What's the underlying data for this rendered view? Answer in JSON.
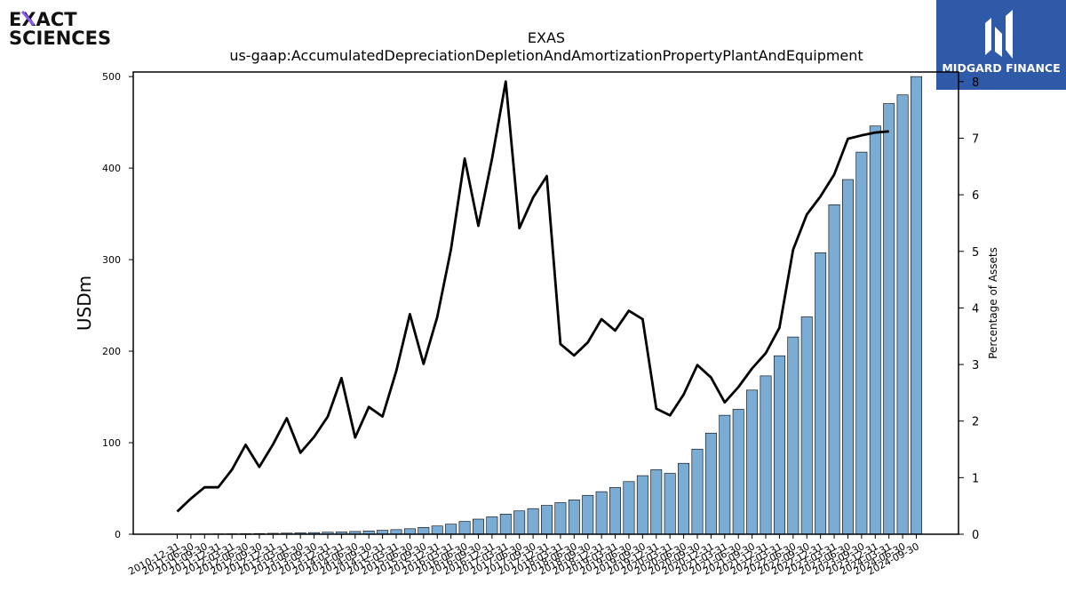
{
  "logos": {
    "left_line1": "EXACT",
    "left_line2": "SCIENCES",
    "right_text": "MIDGARD FINANCE"
  },
  "colors": {
    "bar_default": "#7bacd4",
    "bar_highlight": "#000000",
    "line": "#000000",
    "logo_right_bg": "#2f5aa8",
    "logo_accent": "#8a5cf5"
  },
  "chart_data": {
    "type": "bar",
    "title": "EXAS",
    "subtitle": "us-gaap:AccumulatedDepreciationDepletionAndAmortizationPropertyPlantAndEquipment",
    "ylabel": "USDm",
    "y2label": "Percentage of Assets",
    "ylim": [
      0,
      505
    ],
    "y2lim": [
      0,
      8.17
    ],
    "yticks": [
      0,
      100,
      200,
      300,
      400,
      500
    ],
    "y2ticks": [
      0,
      1,
      2,
      3,
      4,
      5,
      6,
      7,
      8
    ],
    "categories": [
      "2010-12-31",
      "2011-06-30",
      "2011-09-30",
      "2011-12-31",
      "2012-03-31",
      "2012-06-30",
      "2012-09-30",
      "2012-12-31",
      "2013-03-31",
      "2013-06-30",
      "2013-09-30",
      "2013-12-31",
      "2014-03-31",
      "2014-06-30",
      "2014-09-30",
      "2014-12-31",
      "2015-03-31",
      "2015-06-30",
      "2015-09-30",
      "2015-12-31",
      "2016-03-31",
      "2016-06-30",
      "2016-09-30",
      "2016-12-31",
      "2017-03-31",
      "2017-06-30",
      "2017-09-30",
      "2017-12-31",
      "2018-03-31",
      "2018-06-30",
      "2018-09-30",
      "2018-12-31",
      "2019-03-31",
      "2019-06-30",
      "2019-09-30",
      "2019-12-31",
      "2020-03-31",
      "2020-06-30",
      "2020-09-30",
      "2020-12-31",
      "2021-03-31",
      "2021-06-30",
      "2021-09-30",
      "2021-12-31",
      "2022-03-31",
      "2022-06-30",
      "2022-09-30",
      "2022-12-31",
      "2023-03-31",
      "2023-06-30",
      "2023-09-30",
      "2023-12-31",
      "2024-03-31",
      "2024-06-30",
      "2024-09-30"
    ],
    "series": [
      {
        "kind": "bar",
        "values": [
          0.1,
          0.2,
          0.3,
          0.4,
          0.5,
          0.6,
          0.8,
          1.0,
          1.2,
          1.5,
          1.8,
          2.2,
          2.5,
          3.0,
          3.6,
          4.3,
          5.0,
          6.0,
          7.5,
          9.0,
          11.0,
          14.0,
          16.5,
          19.0,
          22.0,
          25.5,
          28.0,
          31.5,
          34.5,
          37.5,
          42.5,
          46.5,
          51.0,
          57.5,
          64.0,
          70.5,
          66.5,
          77.5,
          93.0,
          110.5,
          130.0,
          136.5,
          157.5,
          173.0,
          195.0,
          215.5,
          237.5,
          307.5,
          360.0,
          387.5,
          417.5,
          446.0,
          470.5,
          480.0,
          500.0
        ],
        "highlight": [
          false,
          false,
          false,
          false,
          false,
          false,
          false,
          false,
          false,
          false,
          false,
          false,
          false,
          false,
          false,
          false,
          false,
          false,
          false,
          false,
          false,
          false,
          false,
          false,
          false,
          false,
          false,
          false,
          false,
          false,
          false,
          false,
          false,
          false,
          false,
          false,
          false,
          false,
          false,
          false,
          false,
          false,
          false,
          false,
          false,
          false,
          false,
          false,
          false,
          false,
          false,
          false,
          false,
          false,
          false
        ]
      },
      {
        "kind": "line",
        "axis": "y2",
        "values": [
          0.4,
          0.63,
          0.83,
          0.83,
          1.14,
          1.58,
          1.19,
          1.59,
          2.05,
          1.44,
          1.72,
          2.08,
          2.76,
          1.71,
          2.25,
          2.08,
          2.88,
          3.89,
          3.01,
          3.84,
          5.03,
          6.64,
          5.45,
          6.64,
          8.0,
          5.41,
          5.95,
          6.33,
          3.36,
          3.16,
          3.39,
          3.8,
          3.6,
          3.95,
          3.8,
          2.22,
          2.1,
          2.47,
          2.99,
          2.77,
          2.33,
          2.6,
          2.93,
          3.2,
          3.65,
          5.03,
          5.65,
          5.97,
          6.36,
          6.99,
          7.05,
          7.1,
          7.12,
          null,
          null
        ]
      }
    ]
  }
}
